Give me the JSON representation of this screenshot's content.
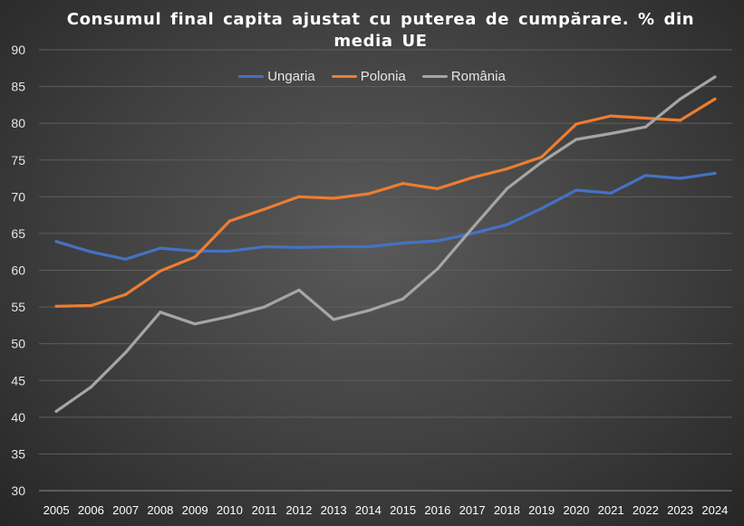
{
  "chart_data": {
    "type": "line",
    "title": "Consumul  final  capita  ajustat  cu  puterea  de  cumpărare.  %  din  media  UE",
    "xlabel": "",
    "ylabel": "",
    "x": [
      2005,
      2006,
      2007,
      2008,
      2009,
      2010,
      2011,
      2012,
      2013,
      2014,
      2015,
      2016,
      2017,
      2018,
      2019,
      2020,
      2021,
      2022,
      2023,
      2024
    ],
    "ylim": [
      30,
      90
    ],
    "yticks": [
      30,
      35,
      40,
      45,
      50,
      55,
      60,
      65,
      70,
      75,
      80,
      85,
      90
    ],
    "grid": true,
    "legend_position": "top",
    "series": [
      {
        "name": "Ungaria",
        "color": "#4472C4",
        "values": [
          63.9,
          62.5,
          61.5,
          63.0,
          62.6,
          62.6,
          63.2,
          63.1,
          63.2,
          63.2,
          63.7,
          64.0,
          65.0,
          66.2,
          68.4,
          70.9,
          70.5,
          72.9,
          72.5,
          73.2
        ]
      },
      {
        "name": "Polonia",
        "color": "#ED7D31",
        "values": [
          55.1,
          55.2,
          56.7,
          59.9,
          61.8,
          66.7,
          68.3,
          70.0,
          69.8,
          70.4,
          71.8,
          71.1,
          72.6,
          73.8,
          75.4,
          79.9,
          81.0,
          80.7,
          80.4,
          83.3
        ]
      },
      {
        "name": "România",
        "color": "#A5A5A5",
        "values": [
          40.8,
          44.1,
          48.8,
          54.3,
          52.7,
          53.7,
          55.0,
          57.3,
          53.3,
          54.5,
          56.1,
          60.2,
          65.7,
          71.1,
          74.7,
          77.8,
          78.6,
          79.5,
          83.3,
          86.3
        ]
      }
    ]
  }
}
